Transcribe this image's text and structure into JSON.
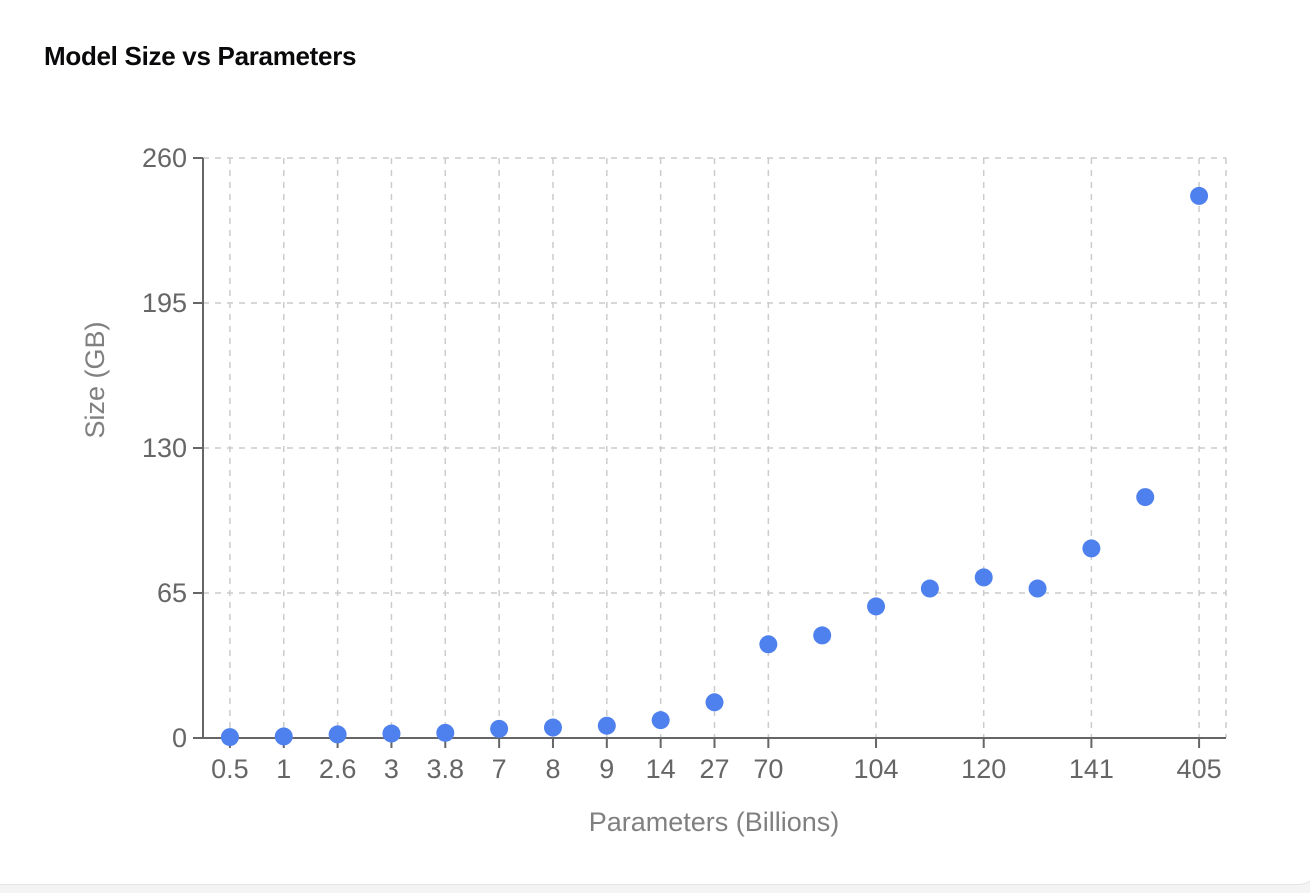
{
  "card": {
    "title": "Model Size vs Parameters"
  },
  "colors": {
    "point": "#4f81ee",
    "axis": "#666666",
    "grid": "#cccccc",
    "tick_text": "#666666",
    "axis_label": "#808080",
    "title": "#09090b"
  },
  "chart_data": {
    "type": "scatter",
    "title": "Model Size vs Parameters",
    "xlabel": "Parameters (Billions)",
    "ylabel": "Size (GB)",
    "x_scale": "categorical",
    "categories": [
      "0.5",
      "1",
      "2.6",
      "3",
      "3.8",
      "7",
      "8",
      "9",
      "14",
      "27",
      "70",
      "",
      "104",
      "",
      "120",
      "",
      "141",
      "",
      "405"
    ],
    "x_tick_labels_visible": [
      "0.5",
      "1",
      "2.6",
      "3",
      "3.8",
      "7",
      "8",
      "9",
      "14",
      "27",
      "70",
      "104",
      "120",
      "141",
      "405"
    ],
    "values": [
      0.4,
      0.7,
      1.6,
      2.0,
      2.3,
      4.1,
      4.7,
      5.5,
      8,
      16,
      42,
      46,
      59,
      67,
      72,
      67,
      85,
      108,
      243
    ],
    "ylim": [
      0,
      260
    ],
    "y_ticks": [
      0,
      65,
      130,
      195,
      260
    ],
    "grid": true,
    "grid_style": "dashed",
    "legend": null
  }
}
